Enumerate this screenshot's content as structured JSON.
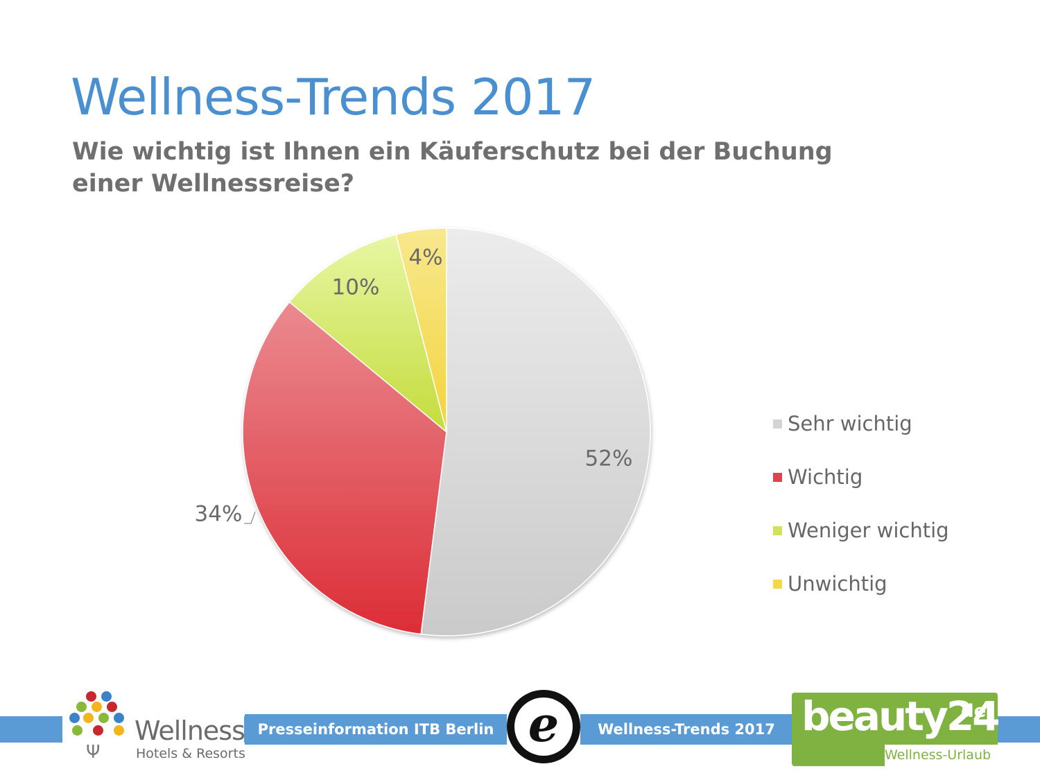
{
  "header": {
    "title": "Wellness-Trends 2017",
    "subtitle": "Wie wichtig ist Ihnen ein Käuferschutz bei der Buchung einer Wellnessreise?"
  },
  "chart_data": {
    "type": "pie",
    "title": "",
    "categories": [
      "Sehr wichtig",
      "Wichtig",
      "Weniger wichtig",
      "Unwichtig"
    ],
    "values": [
      52,
      34,
      10,
      4
    ],
    "labels": [
      "52%",
      "34%",
      "10%",
      "4%"
    ],
    "colors": [
      "#d4d4d4",
      "#e0434d",
      "#cfe25a",
      "#f5d84a"
    ],
    "legend_position": "right"
  },
  "footer": {
    "press_label": "Presseinformation ITB Berlin",
    "trends_label": "Wellness-Trends 2017"
  },
  "logos": {
    "wellness_word": "Wellness",
    "wellness_sub": "Hotels & Resorts",
    "trusted_letter": "e",
    "beauty_word": "beauty24",
    "beauty_de": "de",
    "beauty_tag": "Wellness-Urlaub"
  }
}
